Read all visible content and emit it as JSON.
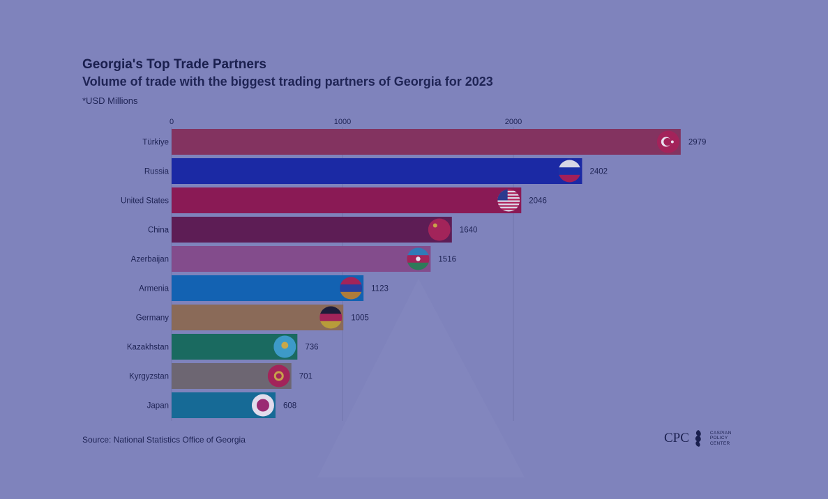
{
  "header": {
    "title": "Georgia's Top Trade Partners",
    "subtitle": "Volume of trade with the biggest trading partners of Georgia for 2023",
    "unit_note": "*USD Millions"
  },
  "footer": {
    "source": "Source: National Statistics Office of Georgia",
    "logo_mark": "CPC",
    "logo_text": "CASPIAN POLICY CENTER"
  },
  "chart_data": {
    "type": "bar",
    "orientation": "horizontal",
    "categories": [
      "Türkiye",
      "Russia",
      "United States",
      "China",
      "Azerbaijan",
      "Armenia",
      "Germany",
      "Kazakhstan",
      "Kyrgyzstan",
      "Japan"
    ],
    "values": [
      2979,
      2402,
      2046,
      1640,
      1516,
      1123,
      1005,
      736,
      701,
      608
    ],
    "colors": [
      "#833360",
      "#1b29a4",
      "#8a1a55",
      "#5d1d55",
      "#834c8c",
      "#1362b2",
      "#8a6a58",
      "#1a6a60",
      "#6d6672",
      "#166a96"
    ],
    "flags": [
      "turkey-flag-icon",
      "russia-flag-icon",
      "usa-flag-icon",
      "china-flag-icon",
      "azerbaijan-flag-icon",
      "armenia-flag-icon",
      "germany-flag-icon",
      "kazakhstan-flag-icon",
      "kyrgyzstan-flag-icon",
      "japan-flag-icon"
    ],
    "x_ticks": [
      0,
      1000,
      2000
    ],
    "xlim": [
      0,
      3000
    ],
    "grid": true,
    "axis_position": "top"
  }
}
